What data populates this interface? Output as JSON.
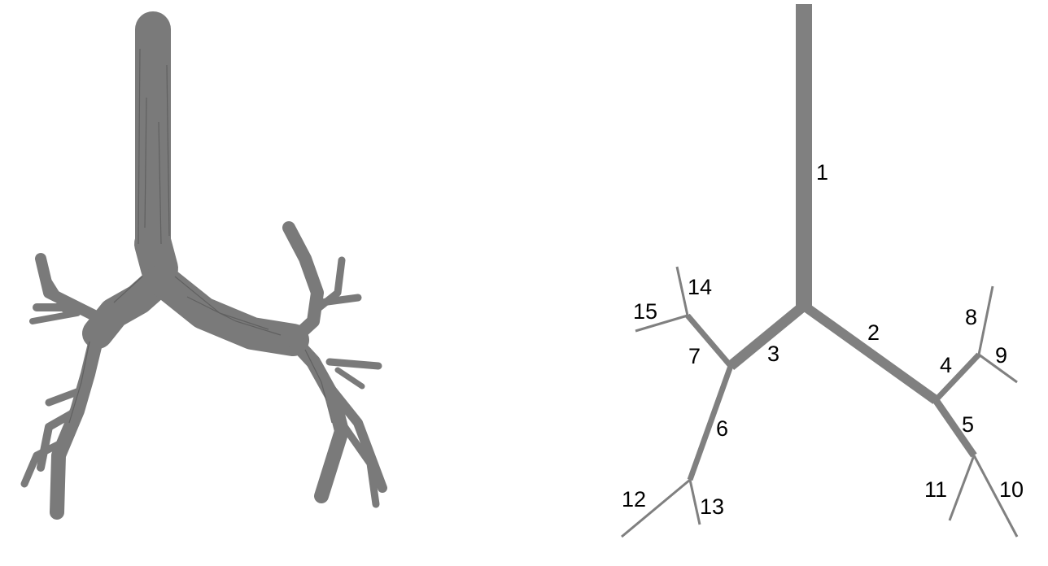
{
  "figure": {
    "left_panel": {
      "content": "3d-airway-rendering"
    },
    "right_panel": {
      "segments": [
        {
          "id": "1",
          "label": "1"
        },
        {
          "id": "2",
          "label": "2"
        },
        {
          "id": "3",
          "label": "3"
        },
        {
          "id": "4",
          "label": "4"
        },
        {
          "id": "5",
          "label": "5"
        },
        {
          "id": "6",
          "label": "6"
        },
        {
          "id": "7",
          "label": "7"
        },
        {
          "id": "8",
          "label": "8"
        },
        {
          "id": "9",
          "label": "9"
        },
        {
          "id": "10",
          "label": "10"
        },
        {
          "id": "11",
          "label": "11"
        },
        {
          "id": "12",
          "label": "12"
        },
        {
          "id": "13",
          "label": "13"
        },
        {
          "id": "14",
          "label": "14"
        },
        {
          "id": "15",
          "label": "15"
        }
      ]
    },
    "colors": {
      "airway_fill": "#7a7a7a",
      "airway_edge": "#555555",
      "schematic_branch": "#808080",
      "label_text": "#000000",
      "background": "#ffffff"
    }
  }
}
